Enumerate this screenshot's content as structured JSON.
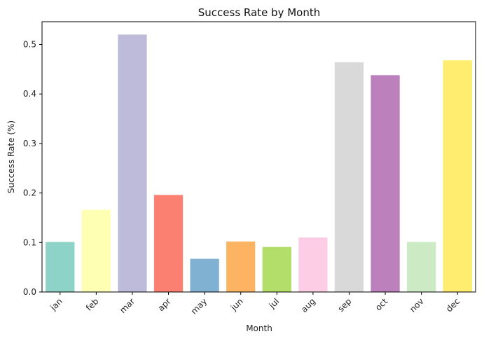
{
  "chart_data": {
    "type": "bar",
    "title": "Success Rate by Month",
    "xlabel": "Month",
    "ylabel": "Success Rate (%)",
    "categories": [
      "jan",
      "feb",
      "mar",
      "apr",
      "may",
      "jun",
      "jul",
      "aug",
      "sep",
      "oct",
      "nov",
      "dec"
    ],
    "values": [
      0.101,
      0.166,
      0.52,
      0.196,
      0.067,
      0.102,
      0.091,
      0.11,
      0.464,
      0.438,
      0.101,
      0.468
    ],
    "colors": [
      "#8dd3c7",
      "#ffffb3",
      "#bebada",
      "#fb8072",
      "#80b1d3",
      "#fdb462",
      "#b3de69",
      "#fccde5",
      "#d9d9d9",
      "#bc80bd",
      "#ccebc5",
      "#ffed6f"
    ],
    "yticks": [
      0.0,
      0.1,
      0.2,
      0.3,
      0.4,
      0.5
    ],
    "ytick_labels": [
      "0.0",
      "0.1",
      "0.2",
      "0.3",
      "0.4",
      "0.5"
    ],
    "ylim": [
      0,
      0.546
    ],
    "xtick_rotation": 45,
    "grid": false,
    "legend": false
  }
}
